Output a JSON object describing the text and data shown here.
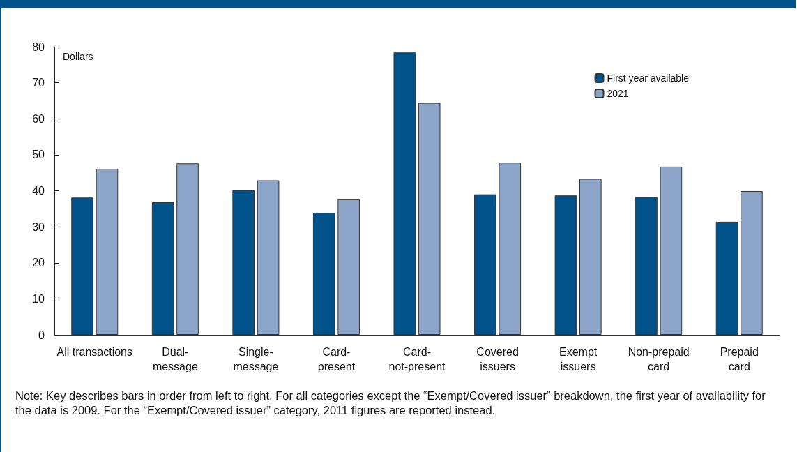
{
  "chart_data": {
    "type": "bar",
    "ylabel": "Dollars",
    "categories": [
      "All transactions",
      "Dual-\nmessage",
      "Single-\nmessage",
      "Card-\npresent",
      "Card-\nnot-present",
      "Covered\nissuers",
      "Exempt\nissuers",
      "Non-prepaid\ncard",
      "Prepaid\ncard"
    ],
    "series": [
      {
        "name": "First year available",
        "color": "#00538a",
        "values": [
          38.1,
          36.8,
          40.2,
          33.9,
          78.4,
          39.0,
          38.7,
          38.3,
          31.4
        ]
      },
      {
        "name": "2021",
        "color": "#8ca5c9",
        "values": [
          46.1,
          47.6,
          42.9,
          37.6,
          64.4,
          47.8,
          43.3,
          46.7,
          39.9
        ]
      }
    ],
    "ylim": [
      0,
      80
    ],
    "yticks": [
      0,
      10,
      20,
      30,
      40,
      50,
      60,
      70,
      80
    ],
    "grid": false,
    "legend": "top right",
    "annotations": [
      "Note: Key describes bars in order from left to right. For all categories except the “Exempt/Covered issuer” breakdown, the first year of availability for the data is 2009. For the “Exempt/Covered issuer” category, 2011 figures are reported instead."
    ]
  }
}
